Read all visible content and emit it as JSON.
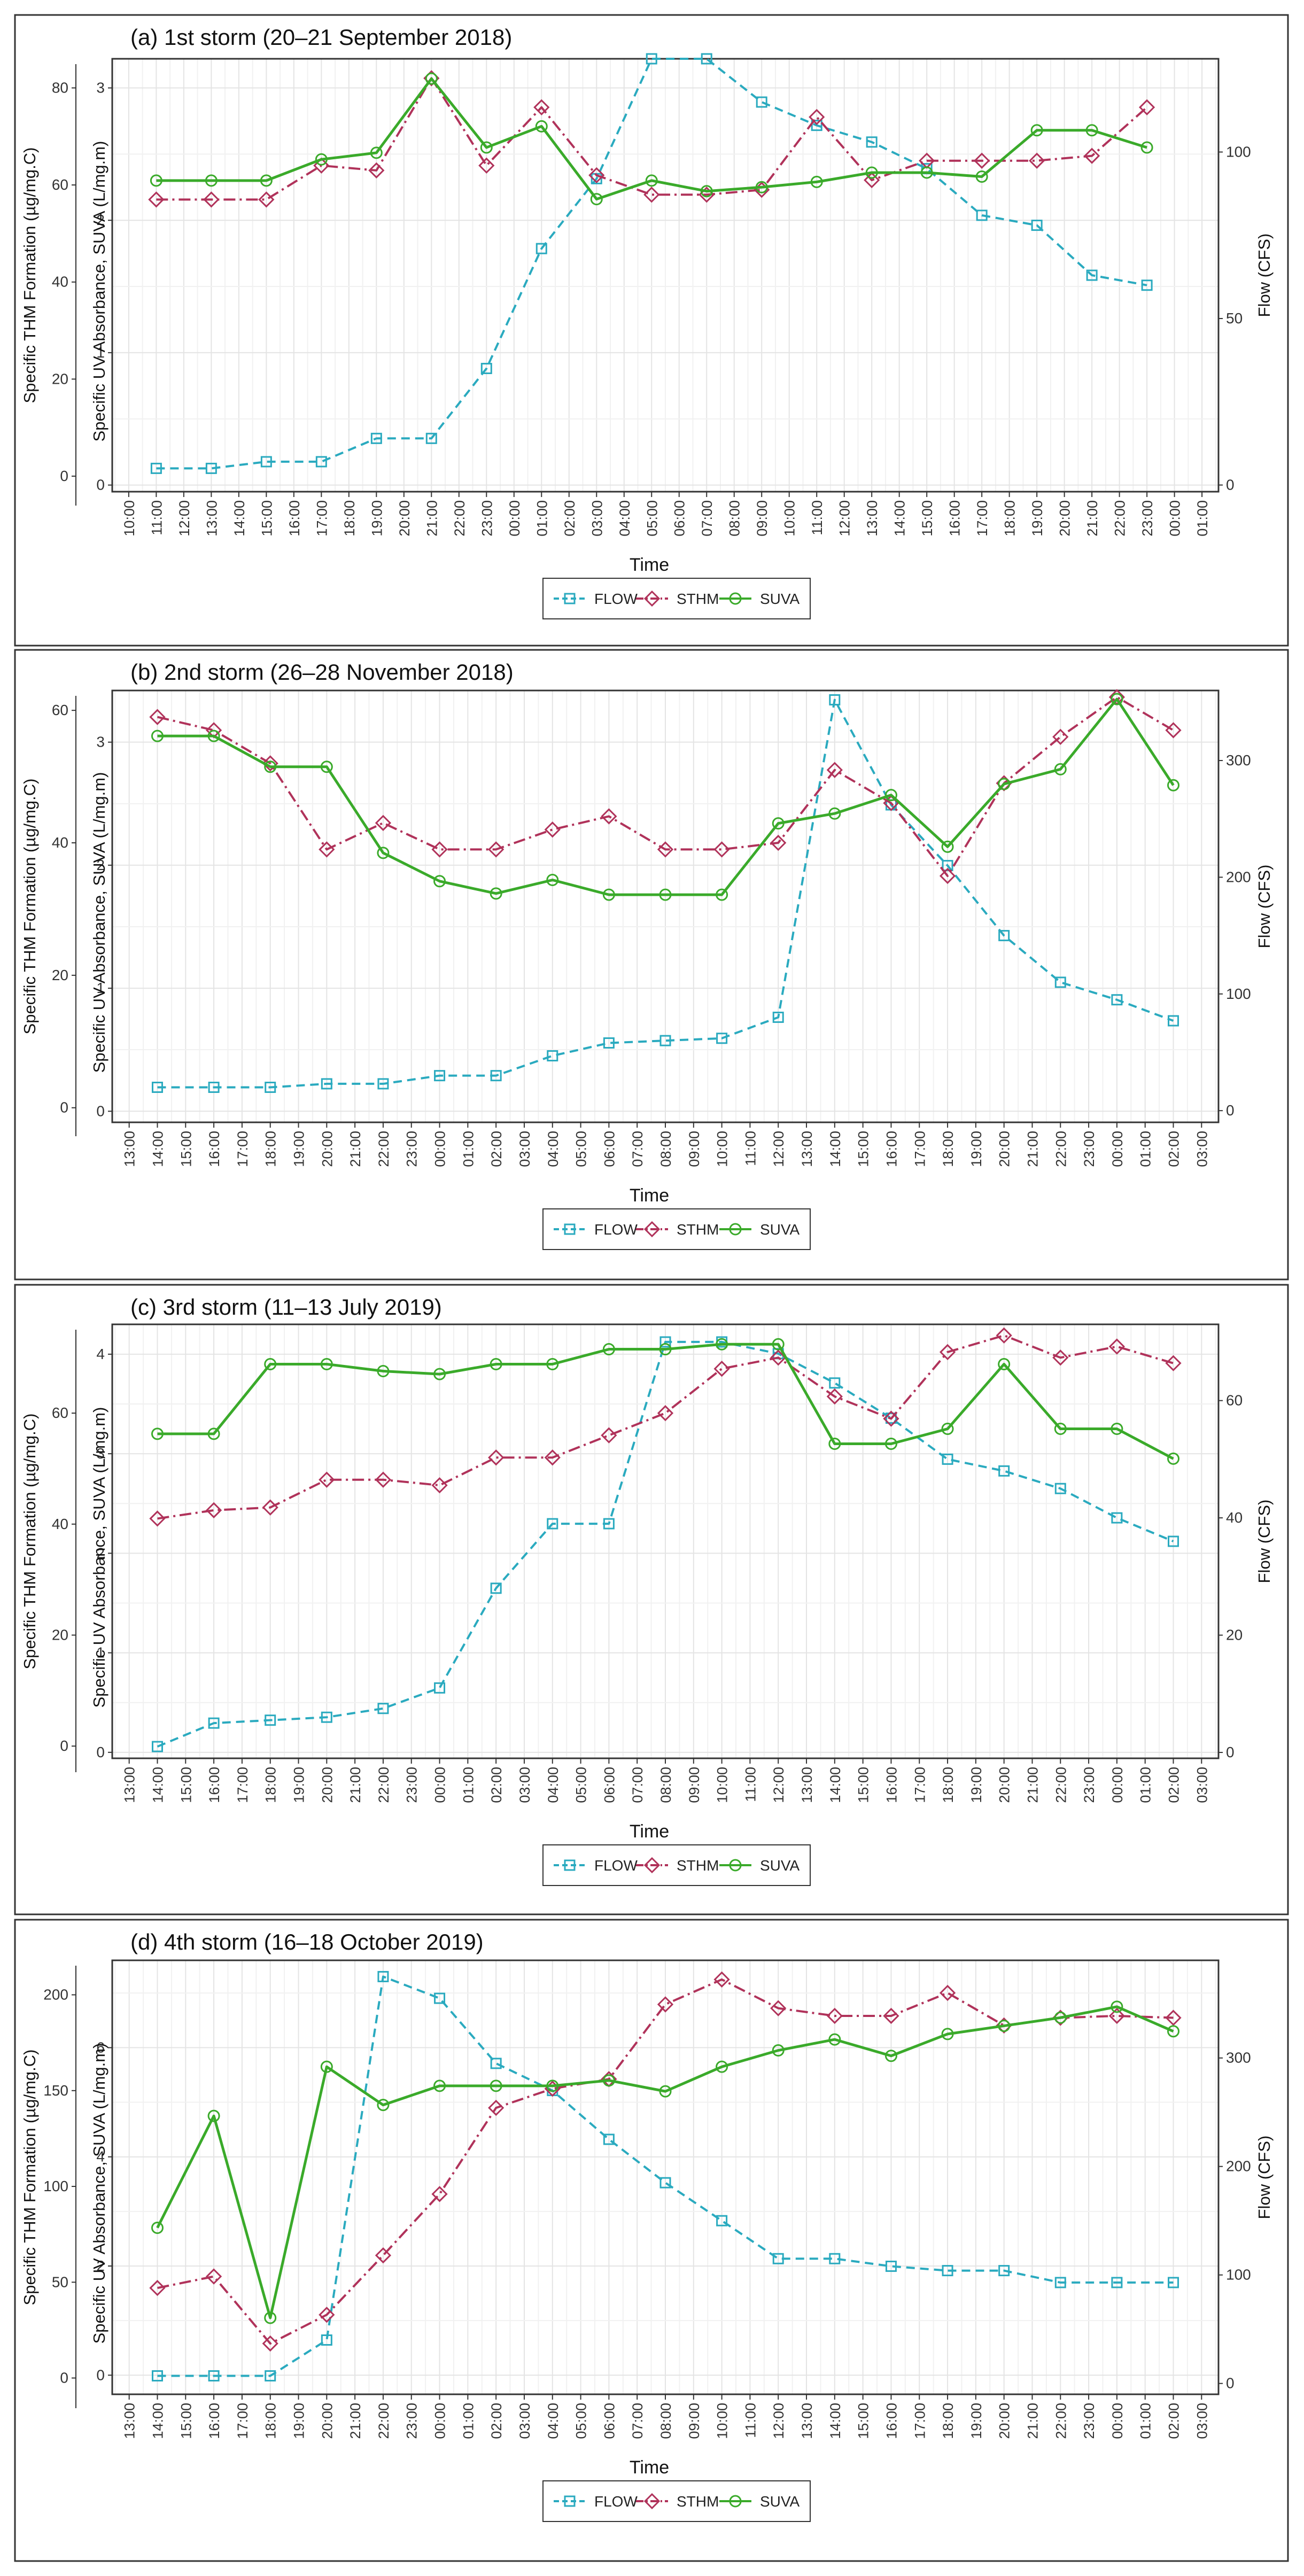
{
  "figure": {
    "common": {
      "xlabel": "Time",
      "y_left_outer_label": "Specific THM Formation (µg/mg.C)",
      "y_left_inner_label": "Specific UV Absorbance, SUVA (L/mg.m)",
      "y_right_label": "Flow (CFS)",
      "legend": [
        "FLOW",
        "STHM",
        "SUVA"
      ],
      "colors": {
        "FLOW": "#2aaabf",
        "STHM": "#b0325a",
        "SUVA": "#3aaa2a"
      }
    }
  },
  "chart_data": [
    {
      "type": "line",
      "title": "(a) 1st storm (20–21 September 2018)",
      "ticks": [
        "10:00",
        "11:00",
        "12:00",
        "13:00",
        "14:00",
        "15:00",
        "16:00",
        "17:00",
        "18:00",
        "19:00",
        "20:00",
        "21:00",
        "22:00",
        "23:00",
        "00:00",
        "01:00",
        "02:00",
        "03:00",
        "04:00",
        "05:00",
        "06:00",
        "07:00",
        "08:00",
        "09:00",
        "10:00",
        "11:00",
        "12:00",
        "13:00",
        "14:00",
        "15:00",
        "16:00",
        "17:00",
        "18:00",
        "19:00",
        "20:00",
        "21:00",
        "22:00",
        "23:00",
        "00:00",
        "01:00"
      ],
      "xlabel": "Time",
      "ylabel": "Specific THM Formation (µg/mg.C)",
      "ylabel2": "Specific UV Absorbance, SUVA (L/mg.m)",
      "ylabel3": "Flow (CFS)",
      "sthm_ticks": [
        0,
        20,
        40,
        60,
        80
      ],
      "suva_ticks": [
        0,
        1,
        2,
        3
      ],
      "flow_ticks": [
        0,
        50,
        100
      ],
      "flow_lim": [
        -2,
        128
      ],
      "suva_lim": [
        -0.05,
        3.22
      ],
      "sthm_lim": [
        -3.2,
        86
      ],
      "flow": {
        "x": [
          1,
          3,
          5,
          7,
          9,
          11,
          13,
          15,
          17,
          19,
          21,
          23,
          25,
          27,
          29,
          31,
          33,
          35,
          37
        ],
        "y": [
          5,
          5,
          7,
          7,
          14,
          14,
          35,
          71,
          92,
          128,
          128,
          115,
          108,
          103,
          95,
          81,
          78,
          63,
          60
        ]
      },
      "sthm": {
        "x": [
          1,
          3,
          5,
          7,
          9,
          11,
          13,
          15,
          17,
          19,
          21,
          23,
          25,
          27,
          29,
          31,
          33,
          35,
          37
        ],
        "y": [
          57,
          57,
          57,
          64,
          63,
          82,
          64,
          76,
          62,
          58,
          58,
          59,
          74,
          61,
          65,
          65,
          65,
          66,
          76
        ]
      },
      "suva": {
        "x": [
          1,
          3,
          5,
          7,
          9,
          11,
          13,
          15,
          17,
          19,
          21,
          23,
          25,
          27,
          29,
          31,
          33,
          35,
          37
        ],
        "y": [
          2.3,
          2.3,
          2.3,
          2.46,
          2.51,
          3.07,
          2.55,
          2.71,
          2.16,
          2.3,
          2.22,
          2.25,
          2.29,
          2.36,
          2.36,
          2.33,
          2.68,
          2.68,
          2.55
        ]
      },
      "legend": [
        "FLOW",
        "STHM",
        "SUVA"
      ]
    },
    {
      "type": "line",
      "title": "(b) 2nd storm (26–28 November 2018)",
      "ticks": [
        "13:00",
        "14:00",
        "15:00",
        "16:00",
        "17:00",
        "18:00",
        "19:00",
        "20:00",
        "21:00",
        "22:00",
        "23:00",
        "00:00",
        "01:00",
        "02:00",
        "03:00",
        "04:00",
        "05:00",
        "06:00",
        "07:00",
        "08:00",
        "09:00",
        "10:00",
        "11:00",
        "12:00",
        "13:00",
        "14:00",
        "15:00",
        "16:00",
        "17:00",
        "18:00",
        "19:00",
        "20:00",
        "21:00",
        "22:00",
        "23:00",
        "00:00",
        "01:00",
        "02:00",
        "03:00"
      ],
      "xlabel": "Time",
      "ylabel": "Specific THM Formation (µg/mg.C)",
      "ylabel2": "Specific UV Absorbance, SUVA (L/mg.m)",
      "ylabel3": "Flow (CFS)",
      "sthm_ticks": [
        0,
        20,
        40,
        60
      ],
      "suva_ticks": [
        0,
        1,
        2,
        3
      ],
      "flow_ticks": [
        0,
        100,
        200,
        300
      ],
      "flow_lim": [
        -10,
        360
      ],
      "suva_lim": [
        -0.09,
        3.42
      ],
      "sthm_lim": [
        -2.2,
        63
      ],
      "flow": {
        "x": [
          1,
          3,
          5,
          7,
          9,
          11,
          13,
          15,
          17,
          19,
          21,
          23,
          25,
          27,
          29,
          31,
          33,
          35,
          37
        ],
        "y": [
          20,
          20,
          20,
          23,
          23,
          30,
          30,
          47,
          58,
          60,
          62,
          80,
          352,
          262,
          210,
          150,
          110,
          95,
          77
        ]
      },
      "sthm": {
        "x": [
          1,
          3,
          5,
          7,
          9,
          11,
          13,
          15,
          17,
          19,
          21,
          23,
          25,
          27,
          29,
          31,
          33,
          35,
          37
        ],
        "y": [
          59,
          57,
          52,
          39,
          43,
          39,
          39,
          42,
          44,
          39,
          39,
          40,
          51,
          46,
          35,
          49,
          56,
          62,
          57
        ]
      },
      "suva": {
        "x": [
          1,
          3,
          5,
          7,
          9,
          11,
          13,
          15,
          17,
          19,
          21,
          23,
          25,
          27,
          29,
          31,
          33,
          35,
          37
        ],
        "y": [
          3.05,
          3.05,
          2.8,
          2.8,
          2.1,
          1.87,
          1.77,
          1.88,
          1.76,
          1.76,
          1.76,
          2.34,
          2.42,
          2.57,
          2.15,
          2.66,
          2.78,
          3.35,
          2.65
        ]
      },
      "legend": [
        "FLOW",
        "STHM",
        "SUVA"
      ]
    },
    {
      "type": "line",
      "title": "(c) 3rd storm (11–13 July 2019)",
      "ticks": [
        "13:00",
        "14:00",
        "15:00",
        "16:00",
        "17:00",
        "18:00",
        "19:00",
        "20:00",
        "21:00",
        "22:00",
        "23:00",
        "00:00",
        "01:00",
        "02:00",
        "03:00",
        "04:00",
        "05:00",
        "06:00",
        "07:00",
        "08:00",
        "09:00",
        "10:00",
        "11:00",
        "12:00",
        "13:00",
        "14:00",
        "15:00",
        "16:00",
        "17:00",
        "18:00",
        "19:00",
        "20:00",
        "21:00",
        "22:00",
        "23:00",
        "00:00",
        "01:00",
        "02:00",
        "03:00"
      ],
      "xlabel": "Time",
      "ylabel": "Specific THM Formation (µg/mg.C)",
      "ylabel2": "Specific UV Absorbance, SUVA (L/mg.m)",
      "ylabel3": "Flow (CFS)",
      "sthm_ticks": [
        0,
        20,
        40,
        60
      ],
      "suva_ticks": [
        0,
        1,
        2,
        3,
        4
      ],
      "flow_ticks": [
        0,
        20,
        40,
        60
      ],
      "flow_lim": [
        -1,
        73
      ],
      "suva_lim": [
        -0.06,
        4.3
      ],
      "sthm_lim": [
        -2.2,
        76
      ],
      "flow": {
        "x": [
          1,
          3,
          5,
          7,
          9,
          11,
          13,
          15,
          17,
          19,
          21,
          23,
          25,
          27,
          29,
          31,
          33,
          35,
          37
        ],
        "y": [
          1,
          5,
          5.5,
          6,
          7.5,
          11,
          28,
          39,
          39,
          70,
          70,
          68,
          63,
          57,
          50,
          48,
          45,
          40,
          36
        ]
      },
      "sthm": {
        "x": [
          1,
          3,
          5,
          7,
          9,
          11,
          13,
          15,
          17,
          19,
          21,
          23,
          25,
          27,
          29,
          31,
          33,
          35,
          37
        ],
        "y": [
          41,
          42.5,
          43,
          48,
          48,
          47,
          52,
          52,
          56,
          60,
          68,
          70,
          63,
          59,
          71,
          74,
          70,
          72,
          69
        ]
      },
      "suva": {
        "x": [
          1,
          3,
          5,
          7,
          9,
          11,
          13,
          15,
          17,
          19,
          21,
          23,
          25,
          27,
          29,
          31,
          33,
          35,
          37
        ],
        "y": [
          3.2,
          3.2,
          3.9,
          3.9,
          3.83,
          3.8,
          3.9,
          3.9,
          4.05,
          4.05,
          4.1,
          4.1,
          3.1,
          3.1,
          3.25,
          3.9,
          3.25,
          3.25,
          2.95
        ]
      },
      "legend": [
        "FLOW",
        "STHM",
        "SUVA"
      ]
    },
    {
      "type": "line",
      "title": "(d) 4th storm (16–18 October 2019)",
      "ticks": [
        "13:00",
        "14:00",
        "15:00",
        "16:00",
        "17:00",
        "18:00",
        "19:00",
        "20:00",
        "21:00",
        "22:00",
        "23:00",
        "00:00",
        "01:00",
        "02:00",
        "03:00",
        "04:00",
        "05:00",
        "06:00",
        "07:00",
        "08:00",
        "09:00",
        "10:00",
        "11:00",
        "12:00",
        "13:00",
        "14:00",
        "15:00",
        "16:00",
        "17:00",
        "18:00",
        "19:00",
        "20:00",
        "21:00",
        "22:00",
        "23:00",
        "00:00",
        "01:00",
        "02:00",
        "03:00"
      ],
      "xlabel": "Time",
      "ylabel": "Specific THM Formation (µg/mg.C)",
      "ylabel2": "Specific UV Absorbance, SUVA (L/mg.m)",
      "ylabel3": "Flow (CFS)",
      "sthm_ticks": [
        0,
        50,
        100,
        150,
        200
      ],
      "suva_ticks": [
        0,
        2,
        4,
        6
      ],
      "flow_ticks": [
        0,
        100,
        200,
        300
      ],
      "flow_lim": [
        -10,
        390
      ],
      "suva_lim": [
        -0.35,
        7.6
      ],
      "sthm_lim": [
        -8.5,
        218
      ],
      "flow": {
        "x": [
          1,
          3,
          5,
          7,
          9,
          11,
          13,
          15,
          17,
          19,
          21,
          23,
          25,
          27,
          29,
          31,
          33,
          35,
          37
        ],
        "y": [
          7,
          7,
          7,
          40,
          375,
          355,
          295,
          270,
          225,
          185,
          150,
          115,
          115,
          108,
          104,
          104,
          93,
          93,
          93
        ]
      },
      "sthm": {
        "x": [
          1,
          3,
          5,
          7,
          9,
          11,
          13,
          15,
          17,
          19,
          21,
          23,
          25,
          27,
          29,
          31,
          33,
          35,
          37
        ],
        "y": [
          47,
          53,
          18,
          33,
          64,
          96,
          141,
          151,
          156,
          195,
          208,
          193,
          189,
          189,
          201,
          184,
          188,
          189,
          188
        ]
      },
      "suva": {
        "x": [
          1,
          3,
          5,
          7,
          9,
          11,
          13,
          15,
          17,
          19,
          21,
          23,
          25,
          27,
          29,
          31,
          33,
          35,
          37
        ],
        "y": [
          2.7,
          4.75,
          1.05,
          5.65,
          4.95,
          5.3,
          5.3,
          5.3,
          5.4,
          5.2,
          5.65,
          5.95,
          6.15,
          5.85,
          6.25,
          6.4,
          6.55,
          6.75,
          6.3
        ]
      },
      "legend": [
        "FLOW",
        "STHM",
        "SUVA"
      ]
    }
  ]
}
